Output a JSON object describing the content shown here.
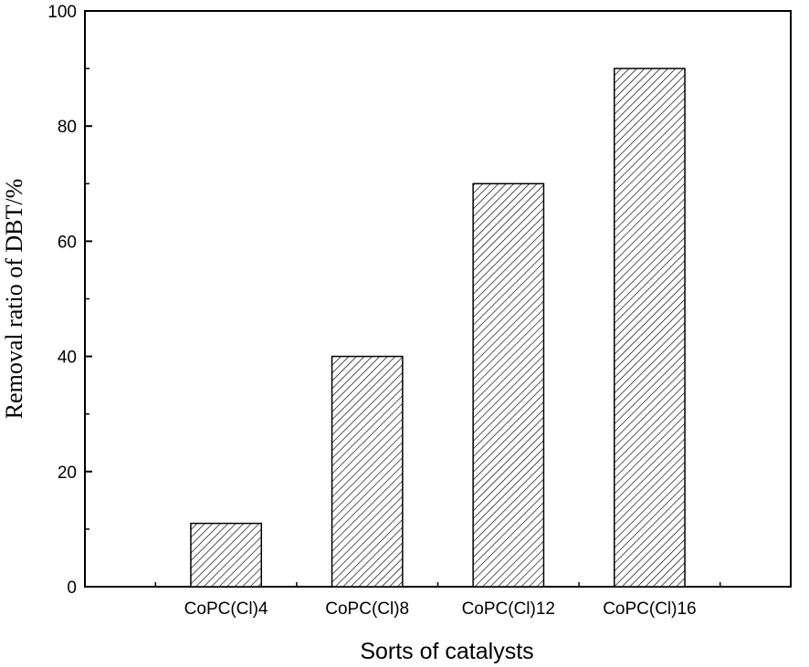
{
  "chart_data": {
    "type": "bar",
    "title": "",
    "xlabel": "Sorts of catalysts",
    "ylabel": "Removal ratio of DBT/%",
    "categories": [
      "CoPC(Cl)4",
      "CoPC(Cl)8",
      "CoPC(Cl)12",
      "CoPC(Cl)16"
    ],
    "values": [
      11,
      40,
      70,
      90
    ],
    "ylim": [
      0,
      100
    ],
    "yticks": [
      0,
      20,
      40,
      60,
      80,
      100
    ],
    "grid": false,
    "bar_fill": "hatched",
    "colors": {
      "axis": "#000000",
      "bar_stroke": "#000000",
      "hatch": "#000000",
      "background": "#ffffff"
    }
  }
}
